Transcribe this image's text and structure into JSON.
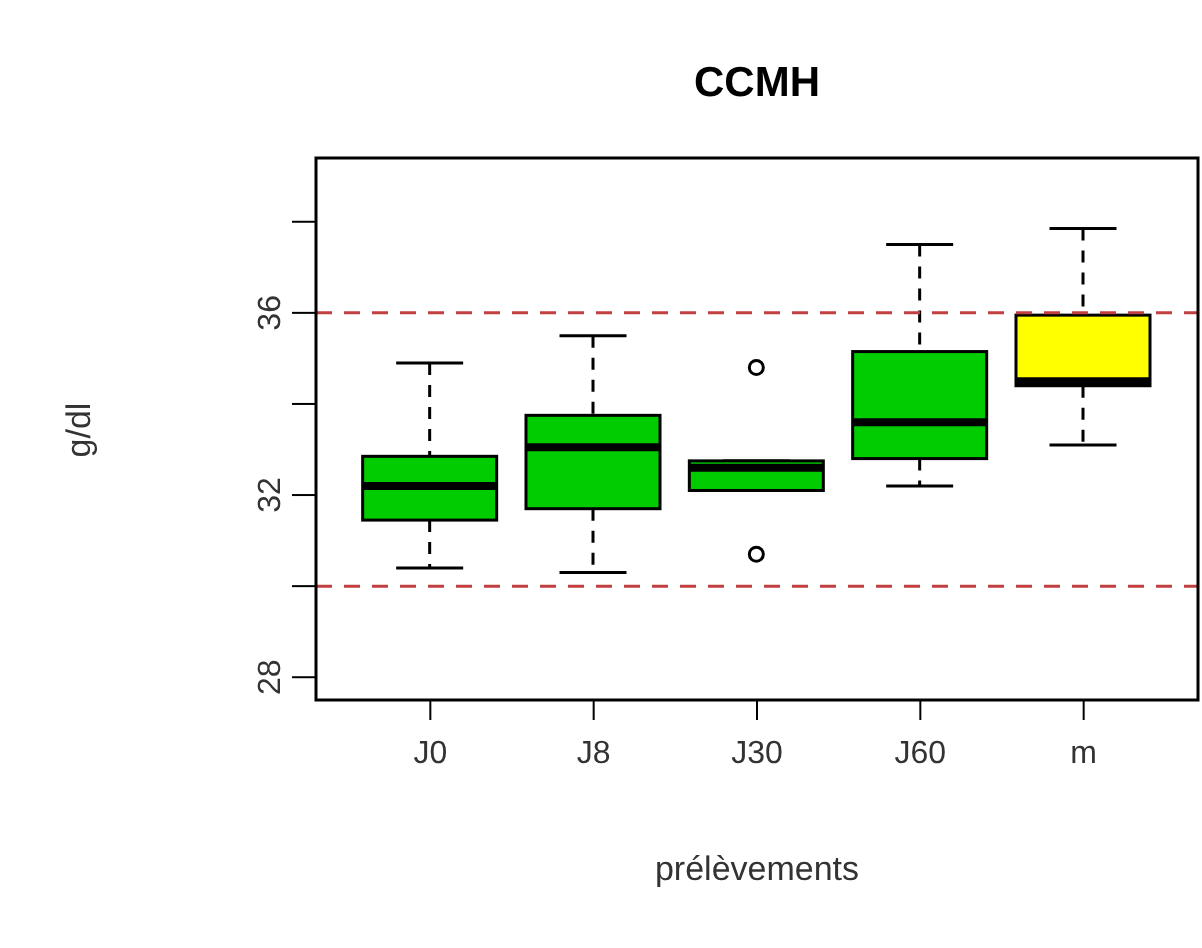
{
  "chart_data": {
    "type": "box",
    "title": "CCMH",
    "xlabel": "prélèvements",
    "ylabel": "g/dl",
    "categories": [
      "J0",
      "J8",
      "J30",
      "J60",
      "m"
    ],
    "colors": [
      "#00cc00",
      "#00cc00",
      "#00cc00",
      "#00cc00",
      "#ffff00"
    ],
    "boxes": [
      {
        "low": 30.4,
        "q1": 31.45,
        "median": 32.2,
        "q3": 32.85,
        "high": 34.9
      },
      {
        "low": 30.3,
        "q1": 31.7,
        "median": 33.05,
        "q3": 33.75,
        "high": 35.5
      },
      {
        "low": 32.1,
        "q1": 32.1,
        "median": 32.6,
        "q3": 32.75,
        "high": 32.75,
        "outliers": [
          34.8,
          30.7
        ]
      },
      {
        "low": 32.2,
        "q1": 32.8,
        "median": 33.6,
        "q3": 35.15,
        "high": 37.5
      },
      {
        "low": 33.1,
        "q1": 34.4,
        "median": 34.5,
        "q3": 35.95,
        "high": 37.85
      }
    ],
    "ylim": [
      27.5,
      39.4
    ],
    "yticks": [
      28,
      {
        "value": 30,
        "label": null
      },
      32,
      {
        "value": 34,
        "label": null
      },
      36,
      {
        "value": 38,
        "label": null
      }
    ],
    "ref_lines": [
      {
        "axis": "y",
        "value": 36,
        "color": "#c04040",
        "line_style": "dashed"
      },
      {
        "axis": "y",
        "value": 30,
        "color": "#c04040",
        "line_style": "dashed"
      }
    ],
    "grid": false,
    "legend": false
  }
}
